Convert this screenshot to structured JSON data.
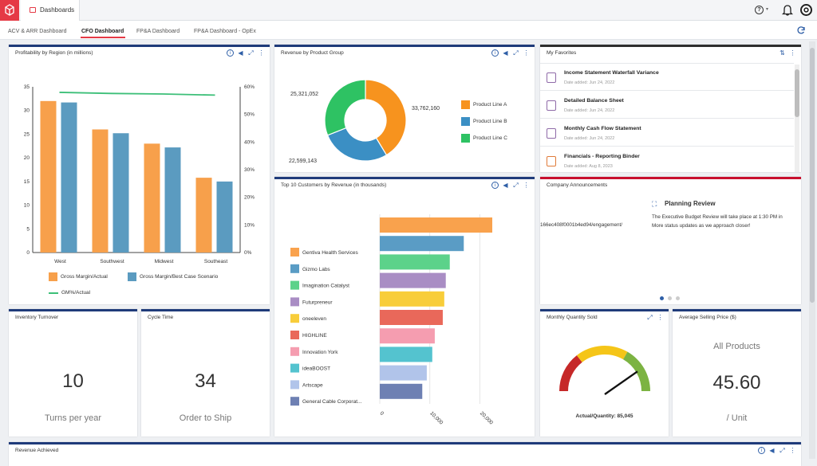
{
  "app": {
    "tab_label": "Dashboards"
  },
  "tabs": [
    "ACV & ARR Dashboard",
    "CFO Dashboard",
    "FP&A Dashboard",
    "FP&A Dashboard - OpEx"
  ],
  "cards": {
    "profitability": {
      "title": "Profitability by Region (in millions)",
      "legend": [
        "Gross Margin/Actual",
        "Gross Margin/Best Case Scenario",
        "GM%/Actual"
      ]
    },
    "revenue_group": {
      "title": "Revenue by Product Group",
      "labels": [
        "25,321,052",
        "33,762,160",
        "22,599,143"
      ],
      "legend": [
        "Product Line A",
        "Product Line B",
        "Product Line C"
      ]
    },
    "favorites": {
      "title": "My Favorites",
      "items": [
        {
          "title": "Income Statement Waterfall Variance",
          "date": "Date added: Jun 24, 2022"
        },
        {
          "title": "Detailed Balance Sheet",
          "date": "Date added: Jun 24, 2022"
        },
        {
          "title": "Monthly Cash Flow Statement",
          "date": "Date added: Jun 24, 2022"
        },
        {
          "title": "Financials - Reporting Binder",
          "date": "Date added: Aug 8, 2023"
        }
      ]
    },
    "top10": {
      "title": "Top 10 Customers by Revenue (in thousands)"
    },
    "announcements": {
      "title": "Company Announcements",
      "heading": "Planning Review",
      "body1": "The Executive Budget Review will take place at 1:30 PM in",
      "body2": "More status updates as we approach closer!",
      "left_text": "166ec408f0001b4ed94/engagement/"
    },
    "inventory": {
      "title": "Inventory Turnover",
      "value": "10",
      "caption": "Turns per year"
    },
    "cycle": {
      "title": "Cycle Time",
      "value": "34",
      "caption": "Order to Ship"
    },
    "quantity": {
      "title": "Monthly Quantity Sold",
      "caption": "Actual/Quantity: 85,045"
    },
    "asp": {
      "title": "Average Selling Price ($)",
      "sub": "All Products",
      "value": "45.60",
      "caption": "/ Unit"
    },
    "revenue_achieved": {
      "title": "Revenue Achieved"
    }
  },
  "chart_data": [
    {
      "type": "bar",
      "title": "Profitability by Region (in millions)",
      "categories": [
        "West",
        "Southwest",
        "Midwest",
        "Southeast"
      ],
      "series": [
        {
          "name": "Gross Margin/Actual",
          "values": [
            32,
            26,
            23,
            15.8
          ],
          "color": "#f7a04b"
        },
        {
          "name": "Gross Margin/Best Case Scenario",
          "values": [
            31.7,
            25.2,
            22.2,
            15
          ],
          "color": "#5b9bc0"
        },
        {
          "name": "GM%/Actual",
          "type": "line",
          "axis": "right",
          "values": [
            58,
            57.6,
            57.4,
            57
          ],
          "color": "#3cbf78"
        }
      ],
      "ylim": [
        0,
        35
      ],
      "yticks": [
        0,
        5,
        10,
        15,
        20,
        25,
        30,
        35
      ],
      "y2lim": [
        0,
        60
      ],
      "y2ticks": [
        "0%",
        "10%",
        "20%",
        "30%",
        "40%",
        "50%",
        "60%"
      ]
    },
    {
      "type": "pie",
      "title": "Revenue by Product Group",
      "categories": [
        "Product Line A",
        "Product Line B",
        "Product Line C"
      ],
      "values": [
        33762160,
        22599143,
        25321052
      ],
      "colors": [
        "#f7931e",
        "#3b8fc4",
        "#2ec263"
      ]
    },
    {
      "type": "bar",
      "title": "Top 10 Customers by Revenue (in thousands)",
      "categories": [
        "Gentiva Health Services",
        "Gizmo Labs",
        "Imagination Catalyst",
        "Futurpreneur",
        "oneeleven",
        "HIGHLINE",
        "Innovation York",
        "ideaBOOST",
        "Artscape",
        "General Cable Corporat..."
      ],
      "values": [
        22500,
        16800,
        14000,
        13200,
        12900,
        12600,
        11000,
        10500,
        9400,
        8500
      ],
      "colors": [
        "#f9a24d",
        "#5a9cc5",
        "#5cd28a",
        "#a98dc4",
        "#f8cd3a",
        "#e9685a",
        "#f59db0",
        "#54c3cf",
        "#b1c4ea",
        "#6e80b3"
      ],
      "xticks": [
        "0",
        "10,000",
        "20,000"
      ],
      "xlim": [
        0,
        30000
      ]
    },
    {
      "type": "gauge",
      "title": "Monthly Quantity Sold",
      "value": 85045,
      "bands": [
        "#c62828",
        "#f5c518",
        "#7cb342"
      ]
    }
  ]
}
